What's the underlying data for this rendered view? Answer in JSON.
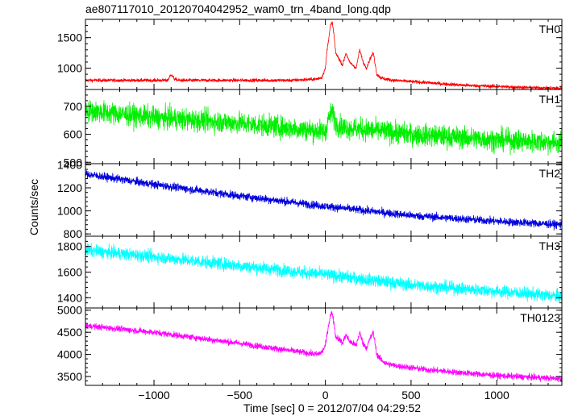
{
  "chart_data": {
    "type": "line",
    "title": "ae807117010_20120704042952_wam0_trn_4band_long.qdp",
    "xlabel": "Time [sec] 0 = 2012/07/04 04:29:52",
    "ylabel": "Counts/sec",
    "xlim": [
      -1400,
      1380
    ],
    "x_ticks": [
      -1000,
      -500,
      0,
      500,
      1000
    ],
    "x_tick_labels": [
      "−1000",
      "−500",
      "0",
      "500",
      "1000"
    ],
    "grid": false,
    "legend": "none",
    "panels": [
      {
        "name": "TH0",
        "color": "#ff0000",
        "ylim": [
          650,
          1800
        ],
        "y_ticks": [
          1000,
          1500
        ],
        "y_tick_labels": [
          "1000",
          "1500"
        ],
        "noise": 20,
        "x": [
          -1400,
          -1200,
          -1000,
          -920,
          -900,
          -880,
          -850,
          -800,
          -600,
          -400,
          -200,
          -50,
          -20,
          0,
          10,
          20,
          30,
          40,
          50,
          60,
          80,
          100,
          120,
          140,
          160,
          180,
          200,
          220,
          240,
          260,
          280,
          300,
          320,
          350,
          400,
          600,
          800,
          1000,
          1200,
          1380
        ],
        "y": [
          800,
          800,
          800,
          800,
          900,
          820,
          800,
          800,
          800,
          800,
          800,
          820,
          850,
          1000,
          1300,
          1500,
          1700,
          1750,
          1550,
          1250,
          1150,
          1050,
          1250,
          1100,
          1050,
          1000,
          1300,
          1100,
          1000,
          1150,
          1250,
          900,
          850,
          820,
          800,
          760,
          720,
          700,
          680,
          670
        ]
      },
      {
        "name": "TH1",
        "color": "#00ee00",
        "ylim": [
          495,
          760
        ],
        "y_ticks": [
          500,
          600,
          700
        ],
        "y_tick_labels": [
          "500",
          "600",
          "700"
        ],
        "noise": 28,
        "x": [
          -1400,
          -1000,
          -500,
          0,
          20,
          40,
          60,
          100,
          500,
          1000,
          1380
        ],
        "y": [
          685,
          660,
          640,
          610,
          660,
          680,
          640,
          625,
          600,
          580,
          570
        ]
      },
      {
        "name": "TH2",
        "color": "#0000dd",
        "ylim": [
          780,
          1410
        ],
        "y_ticks": [
          800,
          1000,
          1200,
          1400
        ],
        "y_tick_labels": [
          "800",
          "1000",
          "1200",
          "1400"
        ],
        "noise": 25,
        "x": [
          -1400,
          -1000,
          -500,
          0,
          500,
          1000,
          1380
        ],
        "y": [
          1320,
          1230,
          1130,
          1040,
          960,
          910,
          880
        ]
      },
      {
        "name": "TH3",
        "color": "#00ffff",
        "ylim": [
          1320,
          1880
        ],
        "y_ticks": [
          1400,
          1600,
          1800
        ],
        "y_tick_labels": [
          "1400",
          "1600",
          "1800"
        ],
        "noise": 35,
        "x": [
          -1400,
          -1000,
          -500,
          0,
          500,
          1000,
          1380
        ],
        "y": [
          1770,
          1720,
          1650,
          1580,
          1500,
          1450,
          1410
        ]
      },
      {
        "name": "TH0123",
        "color": "#ff00ff",
        "ylim": [
          3300,
          5050
        ],
        "y_ticks": [
          3500,
          4000,
          4500,
          5000
        ],
        "y_tick_labels": [
          "3500",
          "4000",
          "4500",
          "5000"
        ],
        "noise": 50,
        "x": [
          -1400,
          -1000,
          -500,
          -50,
          -20,
          0,
          10,
          20,
          30,
          40,
          50,
          60,
          80,
          100,
          120,
          140,
          160,
          180,
          200,
          220,
          240,
          260,
          280,
          300,
          320,
          350,
          400,
          600,
          1000,
          1380
        ],
        "y": [
          4650,
          4500,
          4250,
          4000,
          4050,
          4200,
          4450,
          4700,
          4880,
          4950,
          4700,
          4400,
          4350,
          4250,
          4450,
          4300,
          4250,
          4200,
          4500,
          4250,
          4150,
          4350,
          4500,
          4000,
          3900,
          3800,
          3750,
          3650,
          3520,
          3450
        ]
      }
    ]
  }
}
